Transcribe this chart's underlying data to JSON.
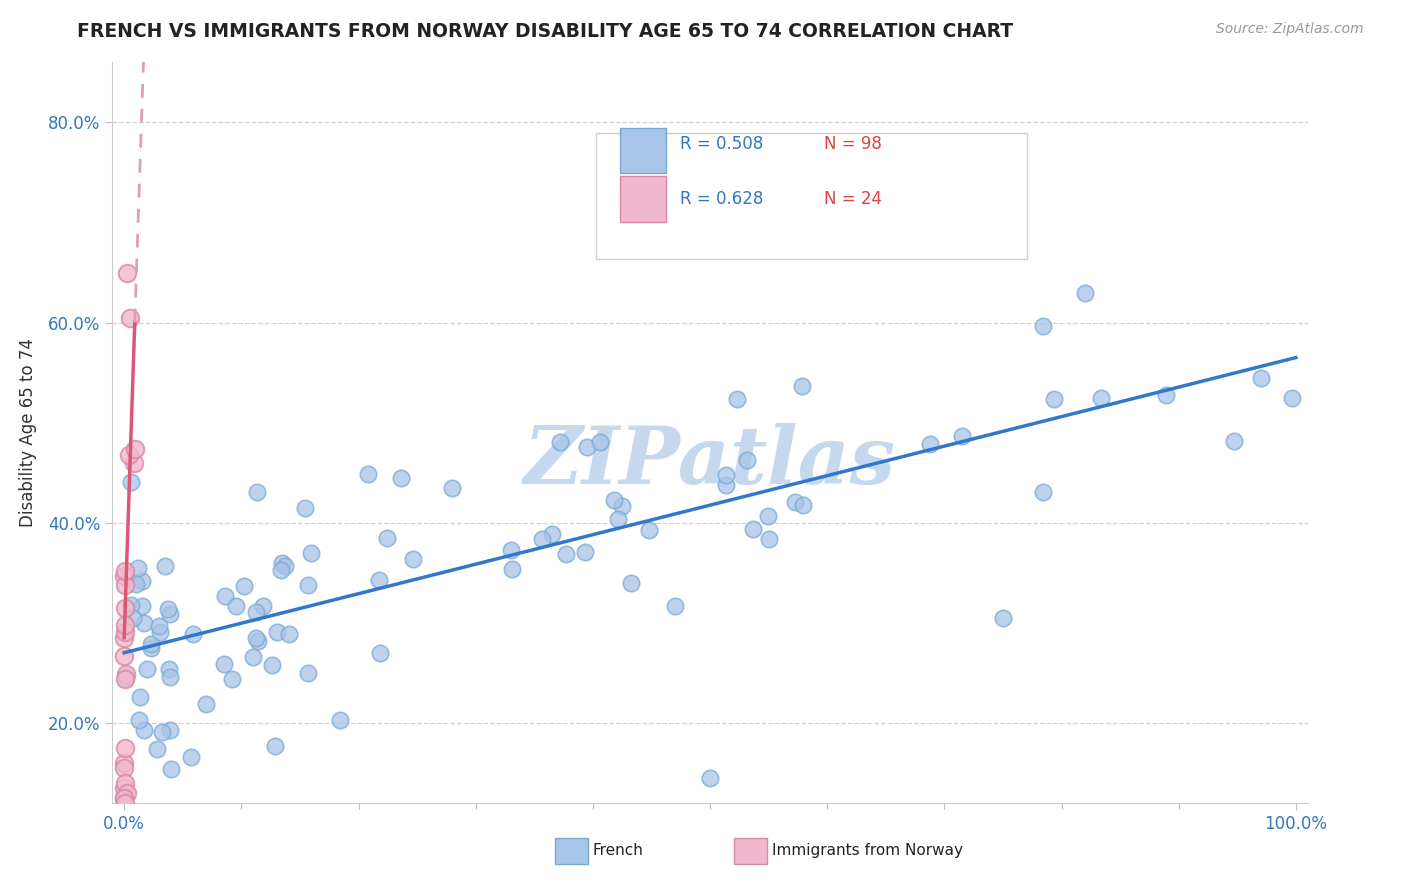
{
  "title": "FRENCH VS IMMIGRANTS FROM NORWAY DISABILITY AGE 65 TO 74 CORRELATION CHART",
  "source": "Source: ZipAtlas.com",
  "ylabel": "Disability Age 65 to 74",
  "xlim": [
    -0.01,
    1.01
  ],
  "ylim": [
    0.12,
    0.86
  ],
  "yticks": [
    0.2,
    0.4,
    0.6,
    0.8
  ],
  "ytick_labels": [
    "20.0%",
    "40.0%",
    "60.0%",
    "80.0%"
  ],
  "xtick_labels_pos": [
    0.0,
    1.0
  ],
  "xtick_labels": [
    "0.0%",
    "100.0%"
  ],
  "french_color": "#a8c4e8",
  "french_edge": "#7aaad4",
  "norway_color": "#f0b8cc",
  "norway_edge": "#d888a8",
  "french_line_color": "#3377cc",
  "norway_line_color": "#dd5577",
  "norway_dash_color": "#dda0b0",
  "watermark": "ZIPatlas",
  "watermark_color": "#c5d8ee",
  "legend_R1": "R = 0.508",
  "legend_N1": "N = 98",
  "legend_R2": "R = 0.628",
  "legend_N2": "N = 24",
  "french_N": 98,
  "norway_N": 24,
  "french_line_x0": 0.0,
  "french_line_y0": 0.27,
  "french_line_x1": 1.0,
  "french_line_y1": 0.565,
  "norway_line_x0": 0.0,
  "norway_line_y0": 0.285,
  "norway_slope": 35.0
}
